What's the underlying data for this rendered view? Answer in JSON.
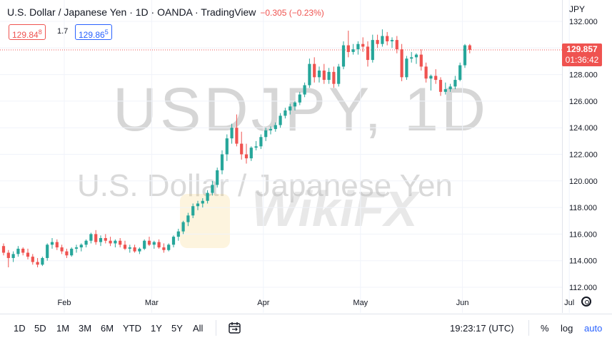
{
  "header": {
    "title": "U.S. Dollar / Japanese Yen · 1D · OANDA · TradingView",
    "change": "−0.305 (−0.23%)",
    "bid_main": "129.84",
    "bid_small": "8",
    "spread": "1.7",
    "ask_main": "129.86",
    "ask_small": "5",
    "currency": "JPY"
  },
  "watermark": {
    "symbol": "USDJPY, 1D",
    "description": "U.S. Dollar / Japanese Yen",
    "brand": "WikiFX"
  },
  "last_price": {
    "price": "129.857",
    "countdown": "01:36:42"
  },
  "timeframes": [
    "1D",
    "5D",
    "1M",
    "3M",
    "6M",
    "YTD",
    "1Y",
    "5Y",
    "All"
  ],
  "status": {
    "clock": "19:23:17 (UTC)",
    "percent": "%",
    "log": "log",
    "auto": "auto"
  },
  "chart_data": {
    "type": "candlestick",
    "symbol": "USDJPY",
    "interval": "1D",
    "ylim": [
      112.0,
      132.5
    ],
    "yticks": [
      112,
      114,
      116,
      118,
      120,
      122,
      124,
      126,
      128,
      130,
      132
    ],
    "ytick_labels": [
      "112.000",
      "114.000",
      "116.000",
      "118.000",
      "120.000",
      "122.000",
      "124.000",
      "126.000",
      "128.000",
      "130.000",
      "132.000"
    ],
    "xtick_labels": [
      "Feb",
      "Mar",
      "Apr",
      "May",
      "Jun",
      "Jul"
    ],
    "xtick_index": [
      12.5,
      30.5,
      53.5,
      73.5,
      94.5,
      116.5
    ],
    "last_value": 129.857,
    "up_color": "#26a69a",
    "down_color": "#ef5350",
    "ohlc": [
      [
        115.1,
        115.3,
        114.4,
        114.6
      ],
      [
        114.6,
        114.8,
        113.5,
        114.2
      ],
      [
        114.2,
        114.7,
        113.9,
        114.5
      ],
      [
        114.5,
        115.1,
        114.3,
        114.9
      ],
      [
        114.9,
        115.0,
        114.4,
        114.6
      ],
      [
        114.6,
        114.9,
        114.1,
        114.3
      ],
      [
        114.3,
        114.5,
        113.7,
        113.9
      ],
      [
        113.9,
        114.2,
        113.5,
        113.7
      ],
      [
        113.7,
        114.3,
        113.6,
        114.2
      ],
      [
        114.2,
        115.3,
        114.0,
        115.2
      ],
      [
        115.2,
        115.7,
        114.9,
        115.4
      ],
      [
        115.4,
        115.6,
        114.8,
        115.0
      ],
      [
        115.0,
        115.2,
        114.5,
        114.7
      ],
      [
        114.7,
        114.9,
        114.2,
        114.4
      ],
      [
        114.4,
        115.0,
        114.3,
        114.9
      ],
      [
        114.9,
        115.2,
        114.6,
        115.0
      ],
      [
        115.0,
        115.3,
        114.7,
        115.2
      ],
      [
        115.2,
        115.6,
        115.0,
        115.5
      ],
      [
        115.5,
        116.1,
        115.3,
        116.0
      ],
      [
        116.0,
        116.3,
        115.2,
        115.4
      ],
      [
        115.4,
        115.9,
        115.1,
        115.7
      ],
      [
        115.7,
        116.0,
        115.3,
        115.5
      ],
      [
        115.5,
        115.8,
        115.1,
        115.3
      ],
      [
        115.3,
        115.6,
        115.0,
        115.5
      ],
      [
        115.5,
        115.7,
        115.0,
        115.2
      ],
      [
        115.2,
        115.5,
        114.8,
        114.9
      ],
      [
        114.9,
        115.2,
        114.6,
        115.0
      ],
      [
        115.0,
        115.2,
        114.6,
        114.7
      ],
      [
        114.7,
        115.0,
        114.5,
        114.9
      ],
      [
        114.9,
        115.6,
        114.8,
        115.5
      ],
      [
        115.5,
        115.8,
        115.1,
        115.2
      ],
      [
        115.2,
        115.5,
        114.9,
        115.4
      ],
      [
        115.4,
        115.6,
        114.9,
        115.0
      ],
      [
        115.0,
        115.3,
        114.6,
        114.8
      ],
      [
        114.8,
        115.3,
        114.7,
        115.2
      ],
      [
        115.2,
        115.9,
        115.0,
        115.8
      ],
      [
        115.8,
        116.4,
        115.5,
        116.2
      ],
      [
        116.2,
        117.0,
        116.0,
        116.9
      ],
      [
        116.9,
        117.6,
        116.6,
        117.4
      ],
      [
        117.4,
        118.3,
        117.2,
        118.1
      ],
      [
        118.1,
        118.5,
        117.8,
        118.3
      ],
      [
        118.3,
        118.7,
        118.0,
        118.5
      ],
      [
        118.5,
        119.3,
        118.3,
        119.1
      ],
      [
        119.1,
        120.0,
        118.9,
        119.7
      ],
      [
        119.7,
        121.0,
        119.5,
        120.8
      ],
      [
        120.8,
        122.3,
        120.5,
        122.0
      ],
      [
        122.0,
        123.5,
        121.5,
        123.2
      ],
      [
        123.2,
        124.3,
        122.8,
        124.0
      ],
      [
        124.0,
        125.0,
        122.6,
        122.8
      ],
      [
        122.8,
        123.7,
        121.6,
        122.0
      ],
      [
        122.0,
        122.8,
        121.3,
        121.7
      ],
      [
        121.7,
        122.6,
        121.5,
        122.5
      ],
      [
        122.5,
        123.0,
        122.3,
        122.6
      ],
      [
        122.6,
        123.5,
        122.4,
        123.3
      ],
      [
        123.3,
        124.0,
        123.0,
        123.8
      ],
      [
        123.8,
        124.1,
        123.5,
        123.9
      ],
      [
        123.9,
        124.4,
        123.7,
        124.2
      ],
      [
        124.2,
        125.1,
        124.0,
        124.9
      ],
      [
        124.9,
        125.5,
        124.7,
        125.3
      ],
      [
        125.3,
        125.8,
        125.0,
        125.6
      ],
      [
        125.6,
        126.0,
        125.3,
        125.9
      ],
      [
        125.9,
        126.7,
        125.7,
        126.5
      ],
      [
        126.5,
        127.4,
        126.3,
        127.2
      ],
      [
        127.2,
        129.2,
        127.0,
        128.8
      ],
      [
        128.8,
        129.3,
        127.4,
        127.8
      ],
      [
        127.8,
        128.6,
        127.4,
        128.3
      ],
      [
        128.3,
        128.8,
        127.3,
        127.6
      ],
      [
        127.6,
        128.5,
        127.3,
        128.2
      ],
      [
        128.2,
        128.6,
        127.0,
        127.3
      ],
      [
        127.3,
        128.8,
        127.1,
        128.6
      ],
      [
        128.6,
        130.5,
        128.4,
        130.2
      ],
      [
        130.2,
        131.3,
        129.3,
        129.7
      ],
      [
        129.7,
        130.3,
        129.5,
        129.9
      ],
      [
        129.9,
        130.5,
        129.5,
        130.3
      ],
      [
        130.3,
        130.8,
        129.7,
        130.1
      ],
      [
        130.1,
        130.5,
        128.6,
        129.1
      ],
      [
        129.1,
        131.0,
        128.9,
        130.6
      ],
      [
        130.6,
        131.0,
        130.0,
        130.3
      ],
      [
        130.3,
        131.4,
        130.1,
        130.9
      ],
      [
        130.9,
        131.2,
        130.2,
        130.5
      ],
      [
        130.5,
        130.8,
        130.0,
        130.6
      ],
      [
        130.6,
        130.9,
        129.6,
        129.9
      ],
      [
        129.9,
        130.3,
        127.5,
        127.8
      ],
      [
        127.8,
        129.4,
        127.6,
        129.2
      ],
      [
        129.2,
        129.7,
        128.9,
        129.3
      ],
      [
        129.3,
        129.6,
        128.8,
        129.5
      ],
      [
        129.5,
        129.9,
        128.3,
        128.6
      ],
      [
        128.6,
        128.9,
        127.4,
        127.7
      ],
      [
        127.7,
        128.0,
        126.8,
        127.9
      ],
      [
        127.9,
        128.4,
        127.3,
        127.6
      ],
      [
        127.6,
        127.8,
        126.4,
        126.7
      ],
      [
        126.7,
        127.4,
        126.5,
        126.9
      ],
      [
        126.9,
        127.3,
        126.7,
        127.1
      ],
      [
        127.1,
        127.9,
        126.9,
        127.6
      ],
      [
        127.6,
        128.9,
        127.5,
        128.7
      ],
      [
        128.7,
        130.3,
        128.5,
        130.2
      ],
      [
        130.2,
        130.3,
        129.6,
        129.857
      ]
    ]
  }
}
